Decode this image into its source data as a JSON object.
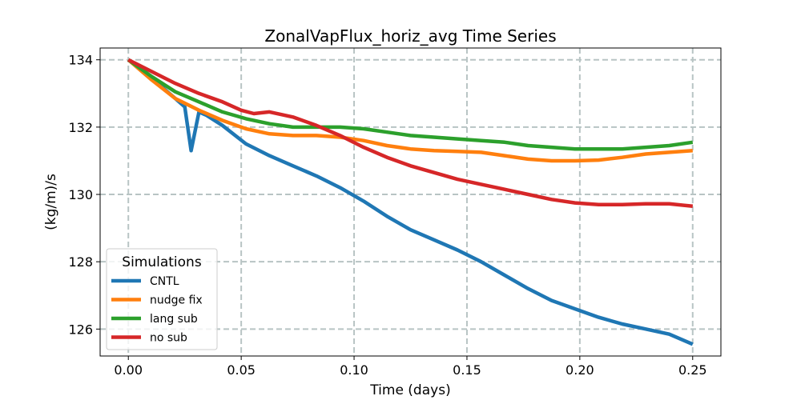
{
  "chart_data": {
    "type": "line",
    "title": "ZonalVapFlux_horiz_avg Time Series",
    "xlabel": "Time (days)",
    "ylabel": "(kg/m)/s",
    "xlim": [
      -0.0125,
      0.2625
    ],
    "ylim": [
      125.2,
      134.35
    ],
    "xticks": [
      0.0,
      0.05,
      0.1,
      0.15,
      0.2,
      0.25
    ],
    "xtick_labels": [
      "0.00",
      "0.05",
      "0.10",
      "0.15",
      "0.20",
      "0.25"
    ],
    "yticks": [
      126,
      128,
      130,
      132,
      134
    ],
    "ytick_labels": [
      "126",
      "128",
      "130",
      "132",
      "134"
    ],
    "grid": true,
    "legend": {
      "title": "Simulations",
      "placement": "lower-left"
    },
    "series": [
      {
        "name": "CNTL",
        "color": "#1f77b4",
        "points": [
          [
            0.0,
            134.0
          ],
          [
            0.0104,
            133.45
          ],
          [
            0.0208,
            132.85
          ],
          [
            0.025,
            132.6
          ],
          [
            0.0278,
            131.3
          ],
          [
            0.0313,
            132.45
          ],
          [
            0.0347,
            132.35
          ],
          [
            0.0417,
            132.05
          ],
          [
            0.0521,
            131.5
          ],
          [
            0.0625,
            131.15
          ],
          [
            0.0729,
            130.85
          ],
          [
            0.0833,
            130.55
          ],
          [
            0.0938,
            130.2
          ],
          [
            0.1042,
            129.8
          ],
          [
            0.1146,
            129.35
          ],
          [
            0.125,
            128.95
          ],
          [
            0.1354,
            128.65
          ],
          [
            0.1458,
            128.35
          ],
          [
            0.1563,
            128.0
          ],
          [
            0.1667,
            127.6
          ],
          [
            0.1771,
            127.2
          ],
          [
            0.1875,
            126.85
          ],
          [
            0.1979,
            126.6
          ],
          [
            0.2083,
            126.35
          ],
          [
            0.2188,
            126.15
          ],
          [
            0.2292,
            126.0
          ],
          [
            0.2396,
            125.85
          ],
          [
            0.25,
            125.55
          ]
        ]
      },
      {
        "name": "nudge fix",
        "color": "#ff7f0e",
        "points": [
          [
            0.0,
            134.0
          ],
          [
            0.0104,
            133.4
          ],
          [
            0.0208,
            132.85
          ],
          [
            0.0313,
            132.5
          ],
          [
            0.0417,
            132.2
          ],
          [
            0.0521,
            131.95
          ],
          [
            0.0625,
            131.8
          ],
          [
            0.0729,
            131.75
          ],
          [
            0.0833,
            131.75
          ],
          [
            0.0938,
            131.7
          ],
          [
            0.1042,
            131.6
          ],
          [
            0.1146,
            131.45
          ],
          [
            0.125,
            131.35
          ],
          [
            0.1354,
            131.3
          ],
          [
            0.1458,
            131.28
          ],
          [
            0.1563,
            131.25
          ],
          [
            0.1667,
            131.15
          ],
          [
            0.1771,
            131.05
          ],
          [
            0.1875,
            131.0
          ],
          [
            0.1979,
            131.0
          ],
          [
            0.2083,
            131.02
          ],
          [
            0.2188,
            131.1
          ],
          [
            0.2292,
            131.2
          ],
          [
            0.2396,
            131.25
          ],
          [
            0.25,
            131.3
          ]
        ]
      },
      {
        "name": "lang sub",
        "color": "#2ca02c",
        "points": [
          [
            0.0,
            134.0
          ],
          [
            0.0104,
            133.5
          ],
          [
            0.0208,
            133.05
          ],
          [
            0.0313,
            132.75
          ],
          [
            0.0417,
            132.45
          ],
          [
            0.0521,
            132.25
          ],
          [
            0.0625,
            132.1
          ],
          [
            0.0729,
            132.0
          ],
          [
            0.0833,
            132.0
          ],
          [
            0.0938,
            132.0
          ],
          [
            0.1042,
            131.95
          ],
          [
            0.1146,
            131.85
          ],
          [
            0.125,
            131.75
          ],
          [
            0.1354,
            131.7
          ],
          [
            0.1458,
            131.65
          ],
          [
            0.1563,
            131.6
          ],
          [
            0.1667,
            131.55
          ],
          [
            0.1771,
            131.45
          ],
          [
            0.1875,
            131.4
          ],
          [
            0.1979,
            131.35
          ],
          [
            0.2083,
            131.35
          ],
          [
            0.2188,
            131.35
          ],
          [
            0.2292,
            131.4
          ],
          [
            0.2396,
            131.45
          ],
          [
            0.25,
            131.55
          ]
        ]
      },
      {
        "name": "no sub",
        "color": "#d62728",
        "points": [
          [
            0.0,
            134.0
          ],
          [
            0.0104,
            133.65
          ],
          [
            0.0208,
            133.3
          ],
          [
            0.0313,
            133.0
          ],
          [
            0.0417,
            132.75
          ],
          [
            0.05,
            132.5
          ],
          [
            0.0556,
            132.4
          ],
          [
            0.0625,
            132.45
          ],
          [
            0.0729,
            132.3
          ],
          [
            0.0833,
            132.05
          ],
          [
            0.0938,
            131.75
          ],
          [
            0.1042,
            131.4
          ],
          [
            0.1146,
            131.1
          ],
          [
            0.125,
            130.85
          ],
          [
            0.1354,
            130.65
          ],
          [
            0.1458,
            130.45
          ],
          [
            0.1563,
            130.3
          ],
          [
            0.1667,
            130.15
          ],
          [
            0.1771,
            130.0
          ],
          [
            0.1875,
            129.85
          ],
          [
            0.1979,
            129.75
          ],
          [
            0.2083,
            129.7
          ],
          [
            0.2188,
            129.7
          ],
          [
            0.2292,
            129.72
          ],
          [
            0.2396,
            129.72
          ],
          [
            0.25,
            129.65
          ]
        ]
      }
    ]
  }
}
